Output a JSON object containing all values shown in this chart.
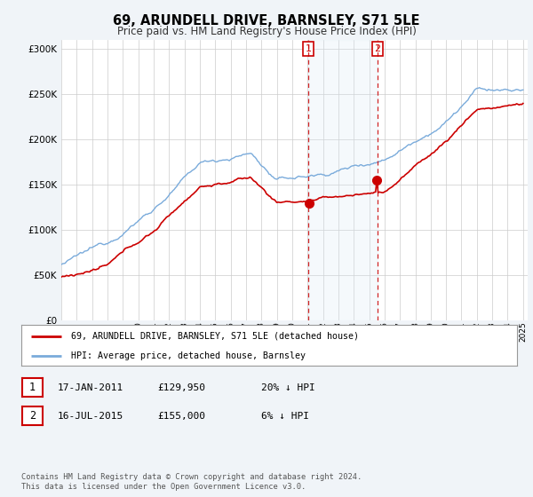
{
  "title": "69, ARUNDELL DRIVE, BARNSLEY, S71 5LE",
  "subtitle": "Price paid vs. HM Land Registry's House Price Index (HPI)",
  "background_color": "#f0f4f8",
  "plot_bg_color": "#ffffff",
  "title_fontsize": 10.5,
  "subtitle_fontsize": 8.5,
  "transaction1": {
    "date": "17-JAN-2011",
    "price": 129950,
    "note": "20% ↓ HPI",
    "year": 2011.046
  },
  "transaction2": {
    "date": "16-JUL-2015",
    "price": 155000,
    "note": "6% ↓ HPI",
    "year": 2015.538
  },
  "legend_label_red": "69, ARUNDELL DRIVE, BARNSLEY, S71 5LE (detached house)",
  "legend_label_blue": "HPI: Average price, detached house, Barnsley",
  "footer": "Contains HM Land Registry data © Crown copyright and database right 2024.\nThis data is licensed under the Open Government Licence v3.0.",
  "red_color": "#cc0000",
  "blue_color": "#7aabdb",
  "vline_color": "#cc0000",
  "shade_color": "#daeaf5",
  "ylim": [
    0,
    310000
  ],
  "yticks": [
    0,
    50000,
    100000,
    150000,
    200000,
    250000,
    300000
  ]
}
